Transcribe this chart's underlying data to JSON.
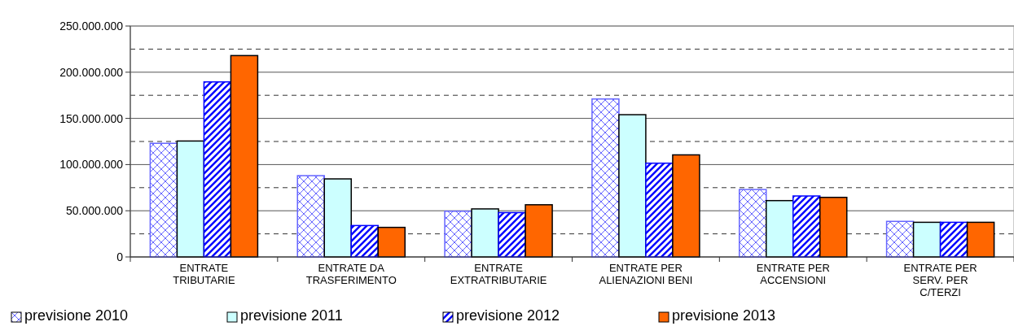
{
  "chart_data": {
    "type": "bar",
    "categories": [
      "ENTRATE TRIBUTARIE",
      "ENTRATE DA TRASFERIMENTO",
      "ENTRATE EXTRATRIBUTARIE",
      "ENTRATE PER ALIENAZIONI BENI",
      "ENTRATE PER ACCENSIONI",
      "ENTRATE PER SERV. PER C/TERZI"
    ],
    "series": [
      {
        "name": "previsione 2010",
        "color": "#6666ff",
        "values": [
          123000000,
          88000000,
          49500000,
          171000000,
          73000000,
          38500000
        ]
      },
      {
        "name": "previsione 2011",
        "color": "#ccffff",
        "values": [
          125500000,
          84500000,
          52000000,
          154000000,
          61000000,
          37500000
        ]
      },
      {
        "name": "previsione 2012",
        "color": "#0000ff",
        "values": [
          189500000,
          34000000,
          48000000,
          101500000,
          66000000,
          37500000
        ]
      },
      {
        "name": "previsione 2013",
        "color": "#ff6600",
        "values": [
          218000000,
          32000000,
          56500000,
          110500000,
          64500000,
          37500000
        ]
      }
    ],
    "ylim": [
      0,
      250000000
    ],
    "yticks": [
      {
        "value": 0,
        "label": "0"
      },
      {
        "value": 25000000,
        "label": null
      },
      {
        "value": 50000000,
        "label": "50.000.000"
      },
      {
        "value": 75000000,
        "label": null
      },
      {
        "value": 100000000,
        "label": "100.000.000"
      },
      {
        "value": 125000000,
        "label": null
      },
      {
        "value": 150000000,
        "label": "150.000.000"
      },
      {
        "value": 175000000,
        "label": null
      },
      {
        "value": 200000000,
        "label": "200.000.000"
      },
      {
        "value": 225000000,
        "label": null
      },
      {
        "value": 250000000,
        "label": "250.000.000"
      }
    ],
    "grid": "y",
    "legend": "bottom"
  }
}
